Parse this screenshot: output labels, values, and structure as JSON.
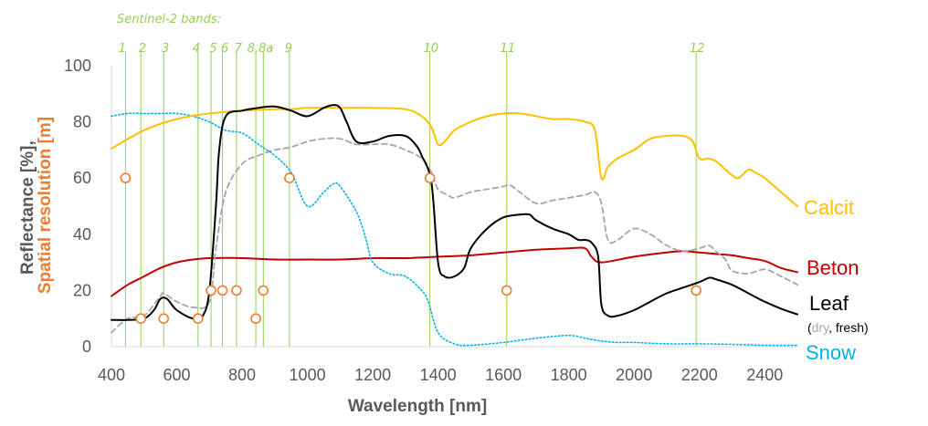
{
  "chart_data": {
    "type": "line",
    "title": "",
    "xlabel": "Wavelength [nm]",
    "ylabel_parts": [
      "Reflectance [%],",
      "Spatial resolution [m]"
    ],
    "xlim": [
      400,
      2500
    ],
    "ylim": [
      0,
      100
    ],
    "x_ticks": [
      400,
      600,
      800,
      1000,
      1200,
      1400,
      1600,
      1800,
      2000,
      2200,
      2400
    ],
    "y_ticks": [
      0,
      20,
      40,
      60,
      80,
      100
    ],
    "bands_title": "Sentinel-2 bands:",
    "bands": [
      {
        "label": "1",
        "wl": 443,
        "res": 60
      },
      {
        "label": "2",
        "wl": 490,
        "res": 10
      },
      {
        "label": "3",
        "wl": 560,
        "res": 10
      },
      {
        "label": "4",
        "wl": 665,
        "res": 10
      },
      {
        "label": "5",
        "wl": 705,
        "res": 20
      },
      {
        "label": "6",
        "wl": 740,
        "res": 20
      },
      {
        "label": "7",
        "wl": 783,
        "res": 20
      },
      {
        "label": "8",
        "wl": 842,
        "res": 10
      },
      {
        "label": "8a",
        "wl": 865,
        "res": 20
      },
      {
        "label": "9",
        "wl": 945,
        "res": 60
      },
      {
        "label": "10",
        "wl": 1375,
        "res": 60
      },
      {
        "label": "11",
        "wl": 1610,
        "res": 20
      },
      {
        "label": "12",
        "wl": 2190,
        "res": 20
      }
    ],
    "band_label_groups": [
      {
        "text": "1",
        "wl": 433
      },
      {
        "text": "2",
        "wl": 495
      },
      {
        "text": "3",
        "wl": 565
      },
      {
        "text": "4",
        "wl": 660
      },
      {
        "text": "5",
        "wl": 712
      },
      {
        "text": "6",
        "wl": 747
      },
      {
        "text": "7",
        "wl": 788
      },
      {
        "text": "8,8a",
        "wl": 856
      },
      {
        "text": "9",
        "wl": 942
      },
      {
        "text": "10",
        "wl": 1378
      },
      {
        "text": "11",
        "wl": 1613
      },
      {
        "text": "12",
        "wl": 2193
      }
    ],
    "series": [
      {
        "name": "Calcit",
        "color": "#ffc000",
        "dash": "solid",
        "x": [
          400,
          500,
          600,
          700,
          800,
          900,
          950,
          1000,
          1100,
          1200,
          1300,
          1350,
          1380,
          1400,
          1420,
          1450,
          1500,
          1550,
          1600,
          1650,
          1700,
          1750,
          1800,
          1850,
          1880,
          1900,
          1920,
          1950,
          2000,
          2050,
          2100,
          2150,
          2180,
          2200,
          2230,
          2250,
          2280,
          2300,
          2320,
          2350,
          2370,
          2400,
          2450,
          2500
        ],
        "y": [
          70.5,
          77,
          81,
          83,
          84,
          84.5,
          84.5,
          85,
          85,
          85,
          84.5,
          82,
          78,
          72,
          73,
          77,
          80,
          82,
          83,
          83,
          82,
          81,
          81,
          80,
          77,
          60,
          64,
          67,
          70,
          74,
          75,
          75,
          73,
          67,
          67,
          66,
          63,
          61,
          60,
          63,
          62,
          60,
          55,
          50
        ]
      },
      {
        "name": "Beton",
        "color": "#c00000",
        "dash": "solid",
        "x": [
          400,
          450,
          500,
          550,
          600,
          650,
          700,
          800,
          900,
          1000,
          1100,
          1200,
          1300,
          1400,
          1500,
          1600,
          1700,
          1800,
          1850,
          1870,
          1900,
          2000,
          2100,
          2150,
          2200,
          2250,
          2300,
          2350,
          2400,
          2450,
          2500
        ],
        "y": [
          18,
          22,
          25,
          28,
          30,
          31,
          31.5,
          31.5,
          31,
          31,
          31,
          31.5,
          31.5,
          32,
          32.5,
          33.5,
          34.5,
          35,
          35,
          32,
          30,
          32,
          33.5,
          34,
          33.5,
          33,
          32.5,
          31.5,
          30.5,
          28,
          26.5
        ]
      },
      {
        "name": "Leaf",
        "color": "#000000",
        "dash": "solid",
        "x": [
          400,
          450,
          500,
          530,
          550,
          570,
          600,
          650,
          680,
          700,
          720,
          730,
          750,
          800,
          850,
          900,
          950,
          1000,
          1050,
          1080,
          1100,
          1120,
          1150,
          1200,
          1250,
          1300,
          1330,
          1350,
          1380,
          1400,
          1420,
          1450,
          1480,
          1500,
          1550,
          1600,
          1650,
          1680,
          1700,
          1750,
          1800,
          1830,
          1850,
          1870,
          1890,
          1900,
          1920,
          1950,
          2000,
          2050,
          2100,
          2150,
          2200,
          2230,
          2250,
          2300,
          2350,
          2400,
          2450,
          2500
        ],
        "y": [
          9.5,
          9.5,
          10,
          13,
          17,
          17,
          13,
          10,
          11,
          20,
          50,
          70,
          82,
          84,
          85,
          85.5,
          84,
          82,
          85,
          86,
          85,
          80,
          73,
          73,
          75,
          75,
          72,
          68,
          58,
          30,
          25,
          25,
          28,
          35,
          42,
          46,
          47,
          47,
          45,
          42,
          40,
          38,
          38,
          37,
          32,
          15,
          11,
          11,
          13,
          16,
          19,
          21,
          23,
          24.5,
          24,
          22,
          19,
          16,
          13.5,
          11.5
        ]
      },
      {
        "name": "dry",
        "color": "#a6a6a6",
        "dash": "dashed",
        "x": [
          400,
          450,
          500,
          550,
          560,
          600,
          650,
          700,
          720,
          750,
          800,
          850,
          900,
          950,
          1000,
          1050,
          1100,
          1150,
          1200,
          1250,
          1300,
          1350,
          1380,
          1400,
          1430,
          1450,
          1500,
          1550,
          1600,
          1620,
          1650,
          1700,
          1750,
          1800,
          1850,
          1880,
          1900,
          1920,
          1950,
          2000,
          2050,
          2100,
          2150,
          2200,
          2230,
          2250,
          2280,
          2300,
          2350,
          2400,
          2450,
          2500
        ],
        "y": [
          5,
          10,
          11,
          18,
          19,
          16,
          14,
          16,
          35,
          55,
          65,
          68,
          70,
          71,
          73,
          74,
          74,
          72,
          72,
          72,
          70,
          67,
          62,
          56,
          54,
          53,
          55,
          56,
          57,
          57.5,
          55,
          51,
          52,
          53,
          54,
          55,
          51,
          38,
          38,
          42,
          40,
          36,
          34,
          35,
          36,
          34,
          31,
          27,
          26,
          27.5,
          25,
          22
        ]
      },
      {
        "name": "Snow",
        "color": "#00b0f0",
        "dash": "dotted",
        "x": [
          400,
          450,
          500,
          550,
          600,
          650,
          700,
          750,
          800,
          850,
          900,
          950,
          1000,
          1050,
          1080,
          1100,
          1150,
          1180,
          1200,
          1250,
          1300,
          1350,
          1370,
          1400,
          1450,
          1500,
          1600,
          1700,
          1800,
          1850,
          1900,
          1950,
          2000,
          2100,
          2200,
          2300,
          2400,
          2500
        ],
        "y": [
          82,
          83,
          83,
          83,
          83,
          82,
          80,
          77,
          76,
          72,
          68,
          62,
          50,
          55,
          58,
          57,
          48,
          38,
          30,
          26,
          25,
          20,
          16,
          5,
          1,
          0.5,
          1.5,
          3,
          4,
          3,
          2,
          1.5,
          1.5,
          1,
          1,
          0.8,
          0.5,
          0.5
        ]
      }
    ]
  },
  "labels": {
    "calcit": "Calcit",
    "beton": "Beton",
    "leaf": "Leaf",
    "leaf_note_open": "(",
    "leaf_note_dry": "dry",
    "leaf_note_sep": ", ",
    "leaf_note_fresh": "fresh",
    "leaf_note_close": ")",
    "snow": "Snow"
  },
  "colors": {
    "calcit": "#ffc000",
    "beton": "#c00000",
    "leaf": "#000000",
    "snow": "#00b0f0",
    "dry": "#a6a6a6",
    "band": "#92d050",
    "marker": "#ed7d31",
    "axis_title": "#595959"
  }
}
